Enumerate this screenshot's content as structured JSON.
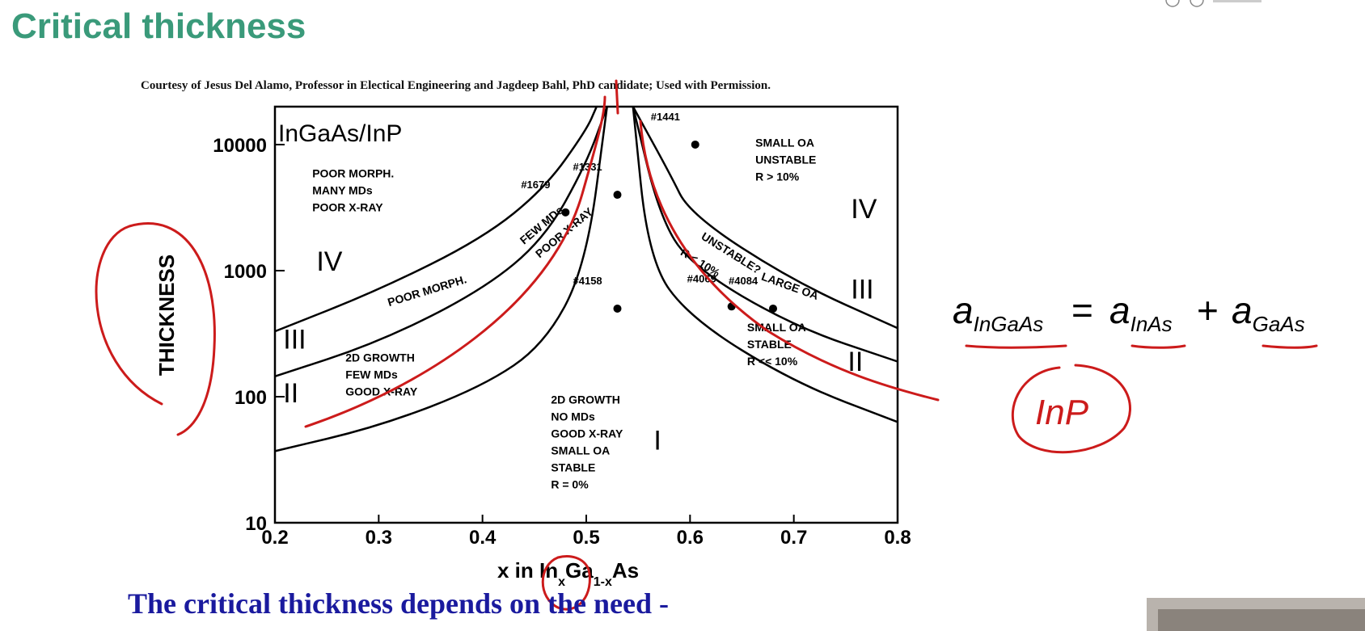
{
  "slide": {
    "title": "Critical thickness",
    "courtesy": "Courtesy of Jesus Del Alamo, Professor in Electical Engineering and Jagdeep Bahl, PhD candidate; Used with Permission.",
    "bottom_caption": "The critical thickness depends on the need -"
  },
  "chart_data": {
    "type": "line",
    "inset_label": "InGaAs/InP",
    "xlabel": "x in In",
    "xlabel_sub1": "x",
    "xlabel_mid": "Ga",
    "xlabel_sub2": "1-x",
    "xlabel_end": "As",
    "ylabel": "THICKNESS",
    "xlim": [
      0.2,
      0.8
    ],
    "ylim": [
      10,
      20000
    ],
    "yscale": "log",
    "x_ticks": [
      "0.2",
      "0.3",
      "0.4",
      "0.5",
      "0.6",
      "0.7",
      "0.8"
    ],
    "y_ticks": [
      "10",
      "100",
      "1000",
      "10000"
    ],
    "series": [
      {
        "x": [
          0.2,
          0.3,
          0.4,
          0.46,
          0.5,
          0.52
        ],
        "y": [
          37,
          58,
          120,
          260,
          1100,
          20000
        ]
      },
      {
        "x": [
          0.2,
          0.3,
          0.4,
          0.46,
          0.5,
          0.52
        ],
        "y": [
          145,
          270,
          700,
          1800,
          7000,
          20000
        ]
      },
      {
        "x": [
          0.2,
          0.3,
          0.4,
          0.46,
          0.5,
          0.51
        ],
        "y": [
          330,
          700,
          1800,
          4500,
          13000,
          20000
        ]
      },
      {
        "x": [
          0.545,
          0.56,
          0.6,
          0.7,
          0.8
        ],
        "y": [
          20000,
          1200,
          420,
          130,
          63
        ]
      },
      {
        "x": [
          0.545,
          0.57,
          0.6,
          0.7,
          0.8
        ],
        "y": [
          20000,
          2800,
          1100,
          360,
          190
        ]
      },
      {
        "x": [
          0.545,
          0.58,
          0.6,
          0.7,
          0.8
        ],
        "y": [
          20000,
          6000,
          2800,
          820,
          350
        ]
      }
    ],
    "data_points": [
      {
        "x": 0.48,
        "y": 2900,
        "label": "#1679"
      },
      {
        "x": 0.53,
        "y": 4000,
        "label": "#1331"
      },
      {
        "x": 0.605,
        "y": 10000,
        "label": "#1441"
      },
      {
        "x": 0.53,
        "y": 500,
        "label": "#4158"
      },
      {
        "x": 0.64,
        "y": 520,
        "label": "#4069"
      },
      {
        "x": 0.68,
        "y": 500,
        "label": "#4084"
      }
    ],
    "region_labels": [
      {
        "text": "POOR MORPH.\nMANY MDs\nPOOR X-RAY",
        "x": 0.236,
        "y": 5500
      },
      {
        "text": "SMALL OA\nUNSTABLE\nR > 10%",
        "x": 0.663,
        "y": 9600
      },
      {
        "text": "2D GROWTH\nFEW MDs\nGOOD X-RAY",
        "x": 0.268,
        "y": 190
      },
      {
        "text": "2D GROWTH\nNO MDs\nGOOD X-RAY\nSMALL OA\nSTABLE\nR = 0%",
        "x": 0.466,
        "y": 88
      },
      {
        "text": "SMALL OA\nSTABLE\nR << 10%",
        "x": 0.655,
        "y": 330
      }
    ],
    "curve_labels": [
      {
        "text": "POOR MORPH.",
        "x": 0.31,
        "y": 520,
        "rotate": -17
      },
      {
        "text": "FEW MDs",
        "x": 0.44,
        "y": 1600,
        "rotate": -40
      },
      {
        "text": "POOR X-RAY",
        "x": 0.455,
        "y": 1250,
        "rotate": -40
      },
      {
        "text": "UNSTABLE?",
        "x": 0.61,
        "y": 1800,
        "rotate": 32
      },
      {
        "text": "R < 10%",
        "x": 0.59,
        "y": 1350,
        "rotate": 32
      },
      {
        "text": "LARGE OA",
        "x": 0.668,
        "y": 850,
        "rotate": 20
      }
    ],
    "roman_labels": [
      {
        "text": "IV",
        "x": 0.24,
        "y": 1000
      },
      {
        "text": "IV",
        "x": 0.755,
        "y": 2600
      },
      {
        "text": "III",
        "x": 0.208,
        "y": 240
      },
      {
        "text": "III",
        "x": 0.755,
        "y": 600
      },
      {
        "text": "II",
        "x": 0.208,
        "y": 90
      },
      {
        "text": "II",
        "x": 0.752,
        "y": 160
      },
      {
        "text": "I",
        "x": 0.565,
        "y": 38
      }
    ]
  },
  "formula": {
    "a": "a",
    "lhs_sub": "InGaAs",
    "eq": "=",
    "rhs1_sub": "InAs",
    "plus": "+",
    "rhs2_sub": "GaAs"
  },
  "annotations": {
    "handwritten_text": "InP",
    "ink_color": "#cc1b1b"
  },
  "colors": {
    "title": "#3a9a7a",
    "caption": "#1a1a9e",
    "ink": "#cc1b1b"
  }
}
